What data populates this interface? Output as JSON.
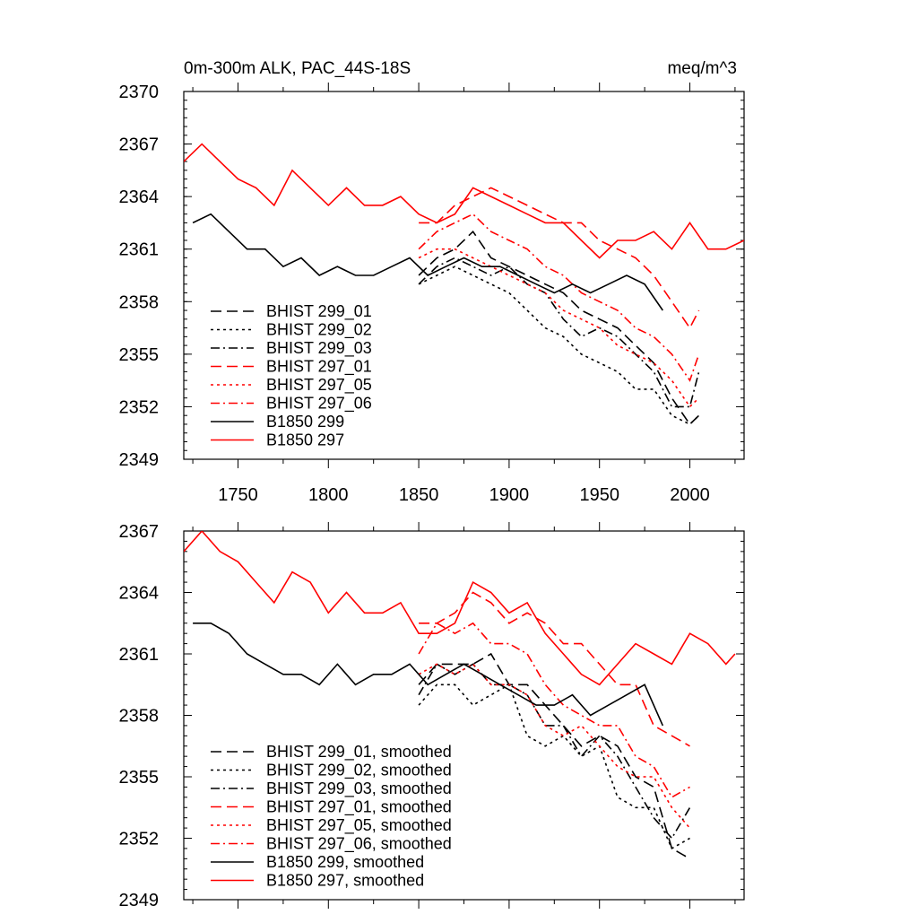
{
  "chart_data": [
    {
      "type": "line",
      "title_left": "0m-300m ALK, PAC_44S-18S",
      "title_right": "meq/m^3",
      "xlim": [
        1720,
        2030
      ],
      "ylim": [
        2349,
        2370
      ],
      "x_ticks": [
        1750,
        1800,
        1850,
        1900,
        1950,
        2000
      ],
      "y_ticks": [
        2349,
        2352,
        2355,
        2358,
        2361,
        2364,
        2367,
        2370
      ],
      "legend_position": "lower-left",
      "series": [
        {
          "name": "BHIST 299_01",
          "color": "#000000",
          "dash": "dashed",
          "x": [
            1850,
            1860,
            1870,
            1880,
            1890,
            1900,
            1910,
            1920,
            1930,
            1940,
            1950,
            1960,
            1970,
            1980,
            1990,
            2000,
            2005
          ],
          "y": [
            2359.5,
            2360.5,
            2361.0,
            2362.0,
            2360.5,
            2360.0,
            2359.5,
            2359.0,
            2358.5,
            2357.5,
            2357.0,
            2356.5,
            2355.5,
            2354.5,
            2352.5,
            2351.0,
            2351.5
          ]
        },
        {
          "name": "BHIST 299_02",
          "color": "#000000",
          "dash": "dotted",
          "x": [
            1850,
            1860,
            1870,
            1880,
            1890,
            1900,
            1910,
            1920,
            1930,
            1940,
            1950,
            1960,
            1970,
            1980,
            1990,
            2000,
            2005
          ],
          "y": [
            2359.0,
            2359.5,
            2360.0,
            2359.5,
            2359.0,
            2358.5,
            2357.5,
            2356.5,
            2356.0,
            2355.0,
            2354.5,
            2354.0,
            2353.0,
            2353.0,
            2351.5,
            2351.0,
            2351.5
          ]
        },
        {
          "name": "BHIST 299_03",
          "color": "#000000",
          "dash": "dashdot",
          "x": [
            1850,
            1860,
            1870,
            1880,
            1890,
            1900,
            1910,
            1920,
            1930,
            1940,
            1950,
            1960,
            1970,
            1980,
            1990,
            2000,
            2005
          ],
          "y": [
            2359.0,
            2360.0,
            2360.5,
            2360.0,
            2359.5,
            2360.0,
            2359.0,
            2358.5,
            2357.0,
            2356.0,
            2356.5,
            2356.0,
            2355.0,
            2354.0,
            2352.0,
            2352.0,
            2354.0
          ]
        },
        {
          "name": "BHIST 297_01",
          "color": "#ff0000",
          "dash": "dashed",
          "x": [
            1850,
            1860,
            1870,
            1880,
            1890,
            1900,
            1910,
            1920,
            1930,
            1940,
            1950,
            1960,
            1970,
            1980,
            1990,
            2000,
            2005
          ],
          "y": [
            2362.5,
            2362.5,
            2363.5,
            2364.0,
            2364.5,
            2364.0,
            2363.5,
            2363.0,
            2362.5,
            2362.5,
            2361.5,
            2361.0,
            2360.5,
            2359.5,
            2358.0,
            2356.5,
            2357.5
          ]
        },
        {
          "name": "BHIST 297_05",
          "color": "#ff0000",
          "dash": "dotted",
          "x": [
            1850,
            1860,
            1870,
            1880,
            1890,
            1900,
            1910,
            1920,
            1930,
            1940,
            1950,
            1960,
            1970,
            1980,
            1990,
            2000,
            2005
          ],
          "y": [
            2360.5,
            2361.0,
            2361.0,
            2360.5,
            2360.0,
            2359.5,
            2359.0,
            2358.5,
            2357.5,
            2357.0,
            2356.5,
            2355.5,
            2355.0,
            2354.5,
            2353.5,
            2352.0,
            2352.5
          ]
        },
        {
          "name": "BHIST 297_06",
          "color": "#ff0000",
          "dash": "dashdot",
          "x": [
            1850,
            1860,
            1870,
            1880,
            1890,
            1900,
            1910,
            1920,
            1930,
            1940,
            1950,
            1960,
            1970,
            1980,
            1990,
            2000,
            2005
          ],
          "y": [
            2361.0,
            2362.0,
            2362.5,
            2363.0,
            2362.0,
            2361.5,
            2361.0,
            2360.0,
            2359.5,
            2358.5,
            2358.0,
            2357.5,
            2356.5,
            2356.0,
            2355.0,
            2353.5,
            2355.0
          ]
        },
        {
          "name": "B1850 299",
          "color": "#000000",
          "dash": "solid",
          "x": [
            1725,
            1735,
            1745,
            1755,
            1765,
            1775,
            1785,
            1795,
            1805,
            1815,
            1825,
            1835,
            1845,
            1855,
            1865,
            1875,
            1885,
            1895,
            1905,
            1915,
            1925,
            1935,
            1945,
            1955,
            1965,
            1975,
            1985
          ],
          "y": [
            2362.5,
            2363.0,
            2362.0,
            2361.0,
            2361.0,
            2360.0,
            2360.5,
            2359.5,
            2360.0,
            2359.5,
            2359.5,
            2360.0,
            2360.5,
            2359.5,
            2360.0,
            2360.5,
            2360.0,
            2360.0,
            2359.5,
            2359.0,
            2358.5,
            2359.0,
            2358.5,
            2359.0,
            2359.5,
            2359.0,
            2357.5
          ]
        },
        {
          "name": "B1850 297",
          "color": "#ff0000",
          "dash": "solid",
          "x": [
            1720,
            1730,
            1740,
            1750,
            1760,
            1770,
            1780,
            1790,
            1800,
            1810,
            1820,
            1830,
            1840,
            1850,
            1860,
            1870,
            1880,
            1890,
            1900,
            1910,
            1920,
            1930,
            1940,
            1950,
            1960,
            1970,
            1980,
            1990,
            2000,
            2010,
            2020,
            2030
          ],
          "y": [
            2366.0,
            2367.0,
            2366.0,
            2365.0,
            2364.5,
            2363.5,
            2365.5,
            2364.5,
            2363.5,
            2364.5,
            2363.5,
            2363.5,
            2364.0,
            2363.0,
            2362.5,
            2363.0,
            2364.5,
            2364.0,
            2363.5,
            2363.0,
            2362.5,
            2362.5,
            2361.5,
            2360.5,
            2361.5,
            2361.5,
            2362.0,
            2361.0,
            2362.5,
            2361.0,
            2361.0,
            2361.5
          ]
        }
      ]
    },
    {
      "type": "line",
      "xlim": [
        1720,
        2030
      ],
      "ylim": [
        2349,
        2367
      ],
      "x_ticks": [
        1750,
        1800,
        1850,
        1900,
        1950,
        2000
      ],
      "y_ticks": [
        2349,
        2352,
        2355,
        2358,
        2361,
        2364,
        2367
      ],
      "legend_position": "lower-left",
      "series": [
        {
          "name": "BHIST 299_01, smoothed",
          "color": "#000000",
          "dash": "dashed",
          "x": [
            1850,
            1860,
            1870,
            1880,
            1890,
            1900,
            1910,
            1920,
            1930,
            1940,
            1950,
            1960,
            1970,
            1980,
            1990,
            2000
          ],
          "y": [
            2359.5,
            2360.5,
            2360.5,
            2360.5,
            2361.0,
            2359.5,
            2359.5,
            2358.5,
            2357.5,
            2356.5,
            2357.0,
            2356.5,
            2355.0,
            2354.5,
            2351.5,
            2351.0
          ]
        },
        {
          "name": "BHIST 299_02, smoothed",
          "color": "#000000",
          "dash": "dotted",
          "x": [
            1850,
            1860,
            1870,
            1880,
            1890,
            1900,
            1910,
            1920,
            1930,
            1940,
            1950,
            1960,
            1970,
            1980,
            1990,
            2000
          ],
          "y": [
            2358.5,
            2359.5,
            2359.5,
            2358.5,
            2359.0,
            2359.5,
            2357.0,
            2356.5,
            2357.0,
            2356.0,
            2356.5,
            2354.0,
            2353.5,
            2353.5,
            2351.5,
            2352.0
          ]
        },
        {
          "name": "BHIST 299_03, smoothed",
          "color": "#000000",
          "dash": "dashdot",
          "x": [
            1850,
            1860,
            1870,
            1880,
            1890,
            1900,
            1910,
            1920,
            1930,
            1940,
            1950,
            1960,
            1970,
            1980,
            1990,
            2000
          ],
          "y": [
            2359.0,
            2360.5,
            2360.0,
            2360.5,
            2359.5,
            2359.5,
            2359.0,
            2357.5,
            2357.5,
            2356.0,
            2357.0,
            2356.0,
            2354.5,
            2353.0,
            2352.0,
            2353.5
          ]
        },
        {
          "name": "BHIST 297_01, smoothed",
          "color": "#ff0000",
          "dash": "dashed",
          "x": [
            1850,
            1860,
            1870,
            1880,
            1890,
            1900,
            1910,
            1920,
            1930,
            1940,
            1950,
            1960,
            1970,
            1980,
            1990,
            2000
          ],
          "y": [
            2362.5,
            2362.5,
            2363.0,
            2364.0,
            2363.5,
            2362.5,
            2363.0,
            2362.5,
            2361.5,
            2361.5,
            2360.5,
            2359.5,
            2359.5,
            2357.5,
            2357.0,
            2356.5
          ]
        },
        {
          "name": "BHIST 297_05, smoothed",
          "color": "#ff0000",
          "dash": "dotted",
          "x": [
            1850,
            1860,
            1870,
            1880,
            1890,
            1900,
            1910,
            1920,
            1930,
            1940,
            1950,
            1960,
            1970,
            1980,
            1990,
            2000
          ],
          "y": [
            2360.0,
            2360.5,
            2360.0,
            2360.5,
            2359.5,
            2359.5,
            2359.0,
            2357.5,
            2357.0,
            2357.5,
            2356.5,
            2355.5,
            2355.0,
            2355.0,
            2353.5,
            2352.5
          ]
        },
        {
          "name": "BHIST 297_06, smoothed",
          "color": "#ff0000",
          "dash": "dashdot",
          "x": [
            1850,
            1860,
            1870,
            1880,
            1890,
            1900,
            1910,
            1920,
            1930,
            1940,
            1950,
            1960,
            1970,
            1980,
            1990,
            2000
          ],
          "y": [
            2361.0,
            2362.5,
            2362.0,
            2362.5,
            2361.5,
            2361.5,
            2361.0,
            2359.5,
            2358.5,
            2358.0,
            2357.5,
            2357.5,
            2356.0,
            2355.5,
            2354.0,
            2354.5
          ]
        },
        {
          "name": "B1850 299, smoothed",
          "color": "#000000",
          "dash": "solid",
          "x": [
            1725,
            1735,
            1745,
            1755,
            1765,
            1775,
            1785,
            1795,
            1805,
            1815,
            1825,
            1835,
            1845,
            1855,
            1865,
            1875,
            1885,
            1895,
            1905,
            1915,
            1925,
            1935,
            1945,
            1955,
            1965,
            1975,
            1985
          ],
          "y": [
            2362.5,
            2362.5,
            2362.0,
            2361.0,
            2360.5,
            2360.0,
            2360.0,
            2359.5,
            2360.5,
            2359.5,
            2360.0,
            2360.0,
            2360.5,
            2359.5,
            2360.0,
            2360.5,
            2360.0,
            2359.5,
            2359.0,
            2358.5,
            2358.5,
            2359.0,
            2358.0,
            2358.5,
            2359.0,
            2359.5,
            2357.5
          ]
        },
        {
          "name": "B1850 297, smoothed",
          "color": "#ff0000",
          "dash": "solid",
          "x": [
            1720,
            1730,
            1740,
            1750,
            1760,
            1770,
            1780,
            1790,
            1800,
            1810,
            1820,
            1830,
            1840,
            1850,
            1860,
            1870,
            1880,
            1890,
            1900,
            1910,
            1920,
            1930,
            1940,
            1950,
            1960,
            1970,
            1980,
            1990,
            2000,
            2010,
            2020,
            2025
          ],
          "y": [
            2366.0,
            2367.0,
            2366.0,
            2365.5,
            2364.5,
            2363.5,
            2365.0,
            2364.5,
            2363.0,
            2364.0,
            2363.0,
            2363.0,
            2363.5,
            2362.0,
            2362.0,
            2362.5,
            2364.5,
            2364.0,
            2363.0,
            2363.5,
            2362.0,
            2361.0,
            2360.0,
            2359.5,
            2360.5,
            2361.5,
            2361.0,
            2360.5,
            2362.0,
            2361.5,
            2360.5,
            2361.0
          ]
        }
      ]
    }
  ]
}
